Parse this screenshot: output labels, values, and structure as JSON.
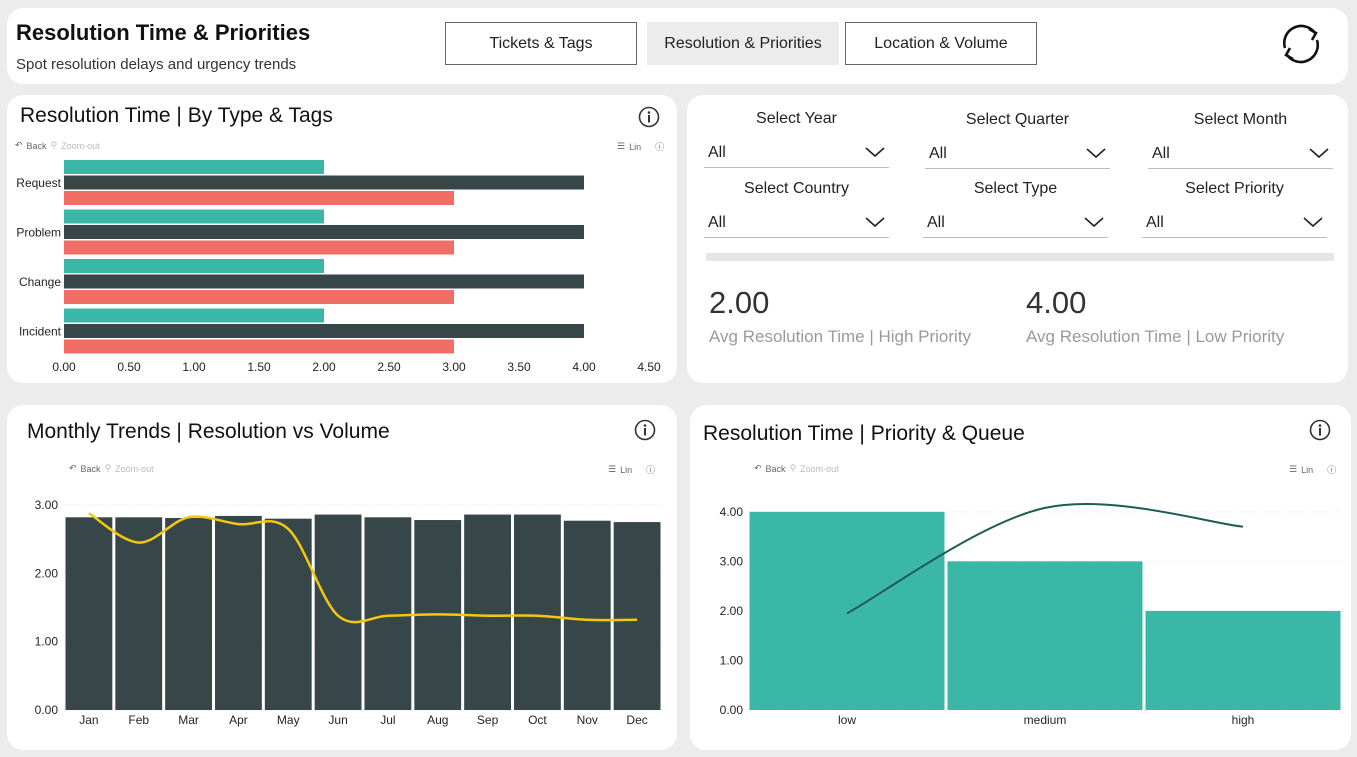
{
  "header": {
    "title": "Resolution Time & Priorities",
    "subtitle": "Spot resolution delays and urgency trends",
    "tabs": [
      {
        "label": "Tickets & Tags",
        "active": false
      },
      {
        "label": "Resolution & Priorities",
        "active": true
      },
      {
        "label": "Location & Volume",
        "active": false
      }
    ]
  },
  "toolbar": {
    "back": "Back",
    "zoom_out": "Zoom-out",
    "scale": "Lin"
  },
  "chart1": {
    "title": "Resolution Time | By Type & Tags",
    "chart_data": {
      "type": "bar",
      "orientation": "horizontal",
      "categories": [
        "Request",
        "Problem",
        "Change",
        "Incident"
      ],
      "series": [
        {
          "color": "#3bb7a7",
          "values": [
            2,
            2,
            2,
            2
          ]
        },
        {
          "color": "#374649",
          "values": [
            4,
            4,
            4,
            4
          ]
        },
        {
          "color": "#f26d65",
          "values": [
            3,
            3,
            3,
            3
          ]
        }
      ],
      "xlim": [
        0,
        4.5
      ],
      "xticks": [
        "0.00",
        "0.50",
        "1.00",
        "1.50",
        "2.00",
        "2.50",
        "3.00",
        "3.50",
        "4.00",
        "4.50"
      ]
    }
  },
  "filters": [
    {
      "label": "Select Year",
      "value": "All"
    },
    {
      "label": "Select Quarter",
      "value": "All"
    },
    {
      "label": "Select Month",
      "value": "All"
    },
    {
      "label": "Select Country",
      "value": "All"
    },
    {
      "label": "Select Type",
      "value": "All"
    },
    {
      "label": "Select Priority",
      "value": "All"
    }
  ],
  "kpis": [
    {
      "value": "2.00",
      "label": "Avg Resolution Time | High Priority"
    },
    {
      "value": "4.00",
      "label": "Avg Resolution Time | Low Priority"
    }
  ],
  "chart2": {
    "title": "Monthly Trends | Resolution vs Volume",
    "chart_data": {
      "type": "bar",
      "categories": [
        "Jan",
        "Feb",
        "Mar",
        "Apr",
        "May",
        "Jun",
        "Jul",
        "Aug",
        "Sep",
        "Oct",
        "Nov",
        "Dec"
      ],
      "series": [
        {
          "type": "bar",
          "color": "#374649",
          "values": [
            2.82,
            2.82,
            2.81,
            2.84,
            2.8,
            2.86,
            2.82,
            2.78,
            2.86,
            2.86,
            2.77,
            2.75
          ]
        },
        {
          "type": "line",
          "color": "#f2c80f",
          "values": [
            2.88,
            2.45,
            2.82,
            2.72,
            2.65,
            1.38,
            1.38,
            1.4,
            1.38,
            1.38,
            1.32,
            1.32
          ]
        }
      ],
      "ylim": [
        0,
        3
      ],
      "yticks": [
        "0.00",
        "1.00",
        "2.00",
        "3.00"
      ]
    }
  },
  "chart3": {
    "title": "Resolution Time | Priority & Queue",
    "chart_data": {
      "type": "bar",
      "categories": [
        "low",
        "medium",
        "high"
      ],
      "series": [
        {
          "type": "bar",
          "color": "#3bb7a7",
          "values": [
            4,
            3,
            2
          ]
        },
        {
          "type": "line",
          "color": "#1f5c55",
          "values": [
            1.95,
            4.08,
            3.7
          ]
        }
      ],
      "ylim": [
        0,
        4.4
      ],
      "yticks": [
        "0.00",
        "1.00",
        "2.00",
        "3.00",
        "4.00"
      ]
    }
  }
}
